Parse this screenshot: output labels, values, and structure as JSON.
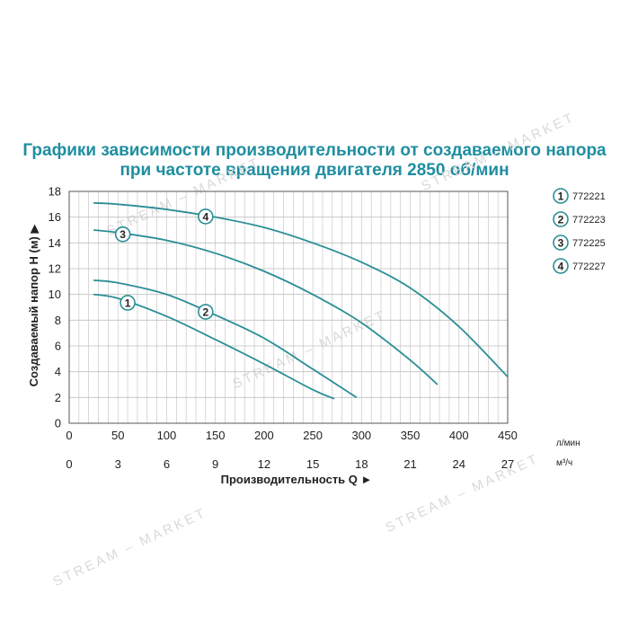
{
  "watermark": "STREAM – MARKET",
  "chart_data": {
    "type": "line",
    "title": "Графики зависимости производительности от создаваемого напора",
    "subtitle": "при частоте вращения двигателя 2850 об/мин",
    "ylabel": "Создаваемый напор H (м) ▶",
    "xlabel": "Производительность Q ►",
    "x_unit_top": "л/мин",
    "x_unit_bottom": "м³/ч",
    "ylim": [
      0,
      18
    ],
    "xlim": [
      0,
      450
    ],
    "yticks": [
      "0",
      "2",
      "4",
      "6",
      "8",
      "10",
      "12",
      "14",
      "16",
      "18"
    ],
    "xticks_top": [
      "0",
      "50",
      "100",
      "150",
      "200",
      "250",
      "300",
      "350",
      "400",
      "450"
    ],
    "xticks_bottom": [
      "0",
      "3",
      "6",
      "9",
      "12",
      "15",
      "18",
      "21",
      "24",
      "27"
    ],
    "grid": true,
    "legend_position": "right",
    "line_color": "#2a8e96",
    "title_color": "#1f8ea0",
    "series": [
      {
        "name": "772221",
        "marker": "1",
        "x": [
          25,
          50,
          100,
          150,
          200,
          250,
          272
        ],
        "y": [
          10.0,
          9.7,
          8.3,
          6.5,
          4.6,
          2.6,
          1.9
        ]
      },
      {
        "name": "772223",
        "marker": "2",
        "x": [
          25,
          50,
          100,
          150,
          200,
          250,
          295
        ],
        "y": [
          11.1,
          10.9,
          10.0,
          8.4,
          6.6,
          4.2,
          2.0
        ]
      },
      {
        "name": "772225",
        "marker": "3",
        "x": [
          25,
          50,
          100,
          150,
          200,
          250,
          300,
          350,
          378
        ],
        "y": [
          15.0,
          14.8,
          14.2,
          13.2,
          11.8,
          10.0,
          7.8,
          4.9,
          3.0
        ]
      },
      {
        "name": "772227",
        "marker": "4",
        "x": [
          25,
          50,
          100,
          150,
          200,
          250,
          300,
          350,
          400,
          450
        ],
        "y": [
          17.1,
          17.0,
          16.6,
          16.0,
          15.2,
          14.0,
          12.5,
          10.5,
          7.5,
          3.6
        ]
      }
    ]
  }
}
